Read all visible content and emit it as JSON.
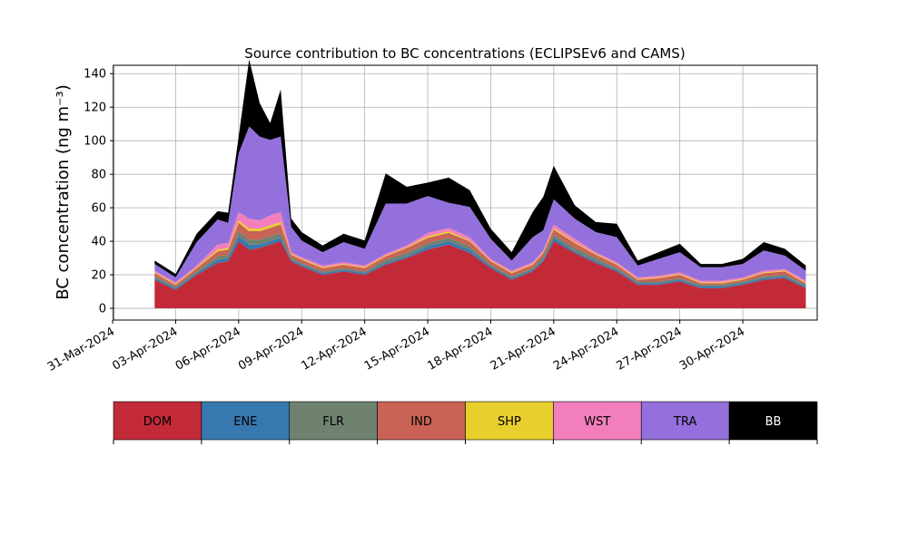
{
  "chart_data": {
    "type": "area",
    "title": "Source contribution to BC concentrations (ECLIPSEv6 and CAMS)",
    "ylabel": "BC concentration (ng m⁻³)",
    "xlabel": "",
    "stacked": true,
    "grid": true,
    "ylim": [
      -7,
      145
    ],
    "xlim": [
      "2024-03-31T01:00",
      "2024-05-03T13:00"
    ],
    "yticks": [
      0,
      20,
      40,
      60,
      80,
      100,
      120,
      140
    ],
    "xticks": [
      "31-Mar-2024",
      "03-Apr-2024",
      "06-Apr-2024",
      "09-Apr-2024",
      "12-Apr-2024",
      "15-Apr-2024",
      "18-Apr-2024",
      "21-Apr-2024",
      "24-Apr-2024",
      "27-Apr-2024",
      "30-Apr-2024"
    ],
    "x": [
      "2024-04-02T00:00",
      "2024-04-03T00:00",
      "2024-04-04T00:00",
      "2024-04-05T00:00",
      "2024-04-05T12:00",
      "2024-04-06T00:00",
      "2024-04-06T12:00",
      "2024-04-07T00:00",
      "2024-04-07T12:00",
      "2024-04-08T00:00",
      "2024-04-08T12:00",
      "2024-04-09T00:00",
      "2024-04-10T00:00",
      "2024-04-11T00:00",
      "2024-04-12T00:00",
      "2024-04-13T00:00",
      "2024-04-14T00:00",
      "2024-04-15T00:00",
      "2024-04-16T00:00",
      "2024-04-17T00:00",
      "2024-04-18T00:00",
      "2024-04-19T00:00",
      "2024-04-20T00:00",
      "2024-04-20T12:00",
      "2024-04-21T00:00",
      "2024-04-22T00:00",
      "2024-04-23T00:00",
      "2024-04-24T00:00",
      "2024-04-25T00:00",
      "2024-04-26T00:00",
      "2024-04-27T00:00",
      "2024-04-28T00:00",
      "2024-04-29T00:00",
      "2024-04-30T00:00",
      "2024-05-01T00:00",
      "2024-05-02T00:00",
      "2024-05-03T00:00"
    ],
    "series": [
      {
        "name": "DOM",
        "color": "#c22a38",
        "values": [
          17,
          11,
          20,
          27,
          28,
          40,
          35,
          36,
          38,
          40,
          28,
          25,
          20,
          22,
          20,
          26,
          30,
          35,
          38,
          33,
          24,
          17,
          22,
          28,
          40,
          33,
          27,
          22,
          14,
          14,
          16,
          12,
          12,
          14,
          17,
          18,
          12
        ]
      },
      {
        "name": "ENE",
        "color": "#3878b0",
        "values": [
          1,
          1,
          1,
          2,
          2,
          3,
          3,
          2,
          2,
          2,
          1,
          1,
          1,
          1,
          1,
          1,
          1,
          2,
          2,
          2,
          1,
          1,
          1,
          1,
          2,
          1,
          1,
          1,
          1,
          1,
          1,
          1,
          1,
          1,
          1,
          1,
          1
        ]
      },
      {
        "name": "FLR",
        "color": "#6f8270",
        "values": [
          1,
          1,
          1,
          2,
          2,
          3,
          3,
          3,
          3,
          3,
          1,
          1,
          1,
          1,
          1,
          2,
          2,
          2,
          2,
          2,
          1,
          1,
          1,
          2,
          2,
          2,
          2,
          1,
          1,
          1,
          1,
          1,
          1,
          1,
          1,
          1,
          1
        ]
      },
      {
        "name": "IND",
        "color": "#c86355",
        "values": [
          2,
          1,
          2,
          3,
          3,
          5,
          5,
          5,
          5,
          5,
          2,
          2,
          2,
          2,
          2,
          2,
          3,
          3,
          3,
          3,
          2,
          2,
          2,
          2,
          3,
          3,
          2,
          2,
          1,
          2,
          2,
          1,
          1,
          1,
          2,
          2,
          1
        ]
      },
      {
        "name": "SHP",
        "color": "#e8cf2d",
        "values": [
          0.5,
          0.5,
          0.5,
          1,
          1,
          1.5,
          1.5,
          1.5,
          1.5,
          1.5,
          0.5,
          0.5,
          0.5,
          0.5,
          0.5,
          0.5,
          0.5,
          1,
          1,
          0.5,
          0.5,
          0.5,
          0.5,
          0.5,
          1,
          0.5,
          0.5,
          0.5,
          0.5,
          0.5,
          0.5,
          0.5,
          0.5,
          0.5,
          0.5,
          0.5,
          0.5
        ]
      },
      {
        "name": "WST",
        "color": "#f27fbc",
        "values": [
          1,
          1,
          1,
          3,
          3,
          5,
          6,
          5,
          6,
          6,
          1,
          1,
          1,
          1,
          1,
          1,
          1,
          2,
          2,
          2,
          1,
          1,
          1,
          1,
          2,
          2,
          1,
          1,
          1,
          1,
          1,
          1,
          1,
          1,
          1,
          1,
          1
        ]
      },
      {
        "name": "TRA",
        "color": "#9370db",
        "values": [
          4,
          3,
          14,
          15,
          12,
          35,
          55,
          50,
          45,
          45,
          15,
          10,
          8,
          12,
          10,
          30,
          25,
          22,
          15,
          18,
          12,
          6,
          15,
          12,
          15,
          12,
          12,
          15,
          7,
          10,
          12,
          8,
          8,
          8,
          12,
          8,
          6
        ]
      },
      {
        "name": "BB",
        "color": "#000000",
        "values": [
          2,
          2,
          5,
          5,
          6,
          10,
          40,
          20,
          10,
          28,
          5,
          5,
          4,
          5,
          5,
          18,
          10,
          8,
          15,
          10,
          6,
          5,
          15,
          20,
          20,
          8,
          6,
          8,
          3,
          4,
          5,
          2,
          2,
          3,
          5,
          4,
          3
        ]
      }
    ],
    "legend": {
      "placement": "bottom",
      "entries": [
        "DOM",
        "ENE",
        "FLR",
        "IND",
        "SHP",
        "WST",
        "TRA",
        "BB"
      ],
      "text_colors": [
        "#000000",
        "#000000",
        "#000000",
        "#000000",
        "#000000",
        "#000000",
        "#000000",
        "#ffffff"
      ]
    }
  }
}
